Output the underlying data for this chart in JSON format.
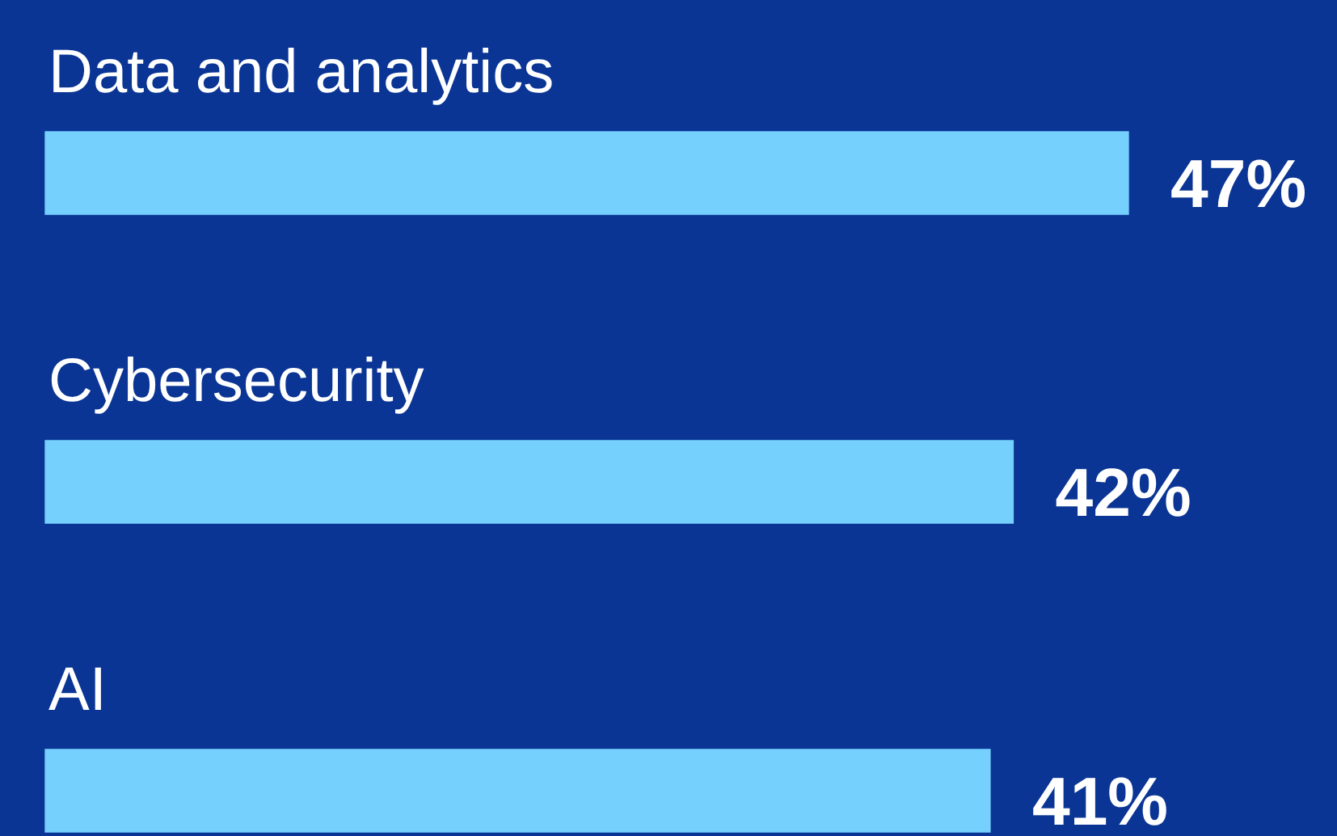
{
  "chart_data": {
    "type": "bar",
    "orientation": "horizontal",
    "categories": [
      "Data and analytics",
      "Cybersecurity",
      "AI"
    ],
    "values": [
      47,
      42,
      41
    ],
    "color": "#76d0fe",
    "value_labels": [
      "47%",
      "42%",
      "41%"
    ]
  }
}
